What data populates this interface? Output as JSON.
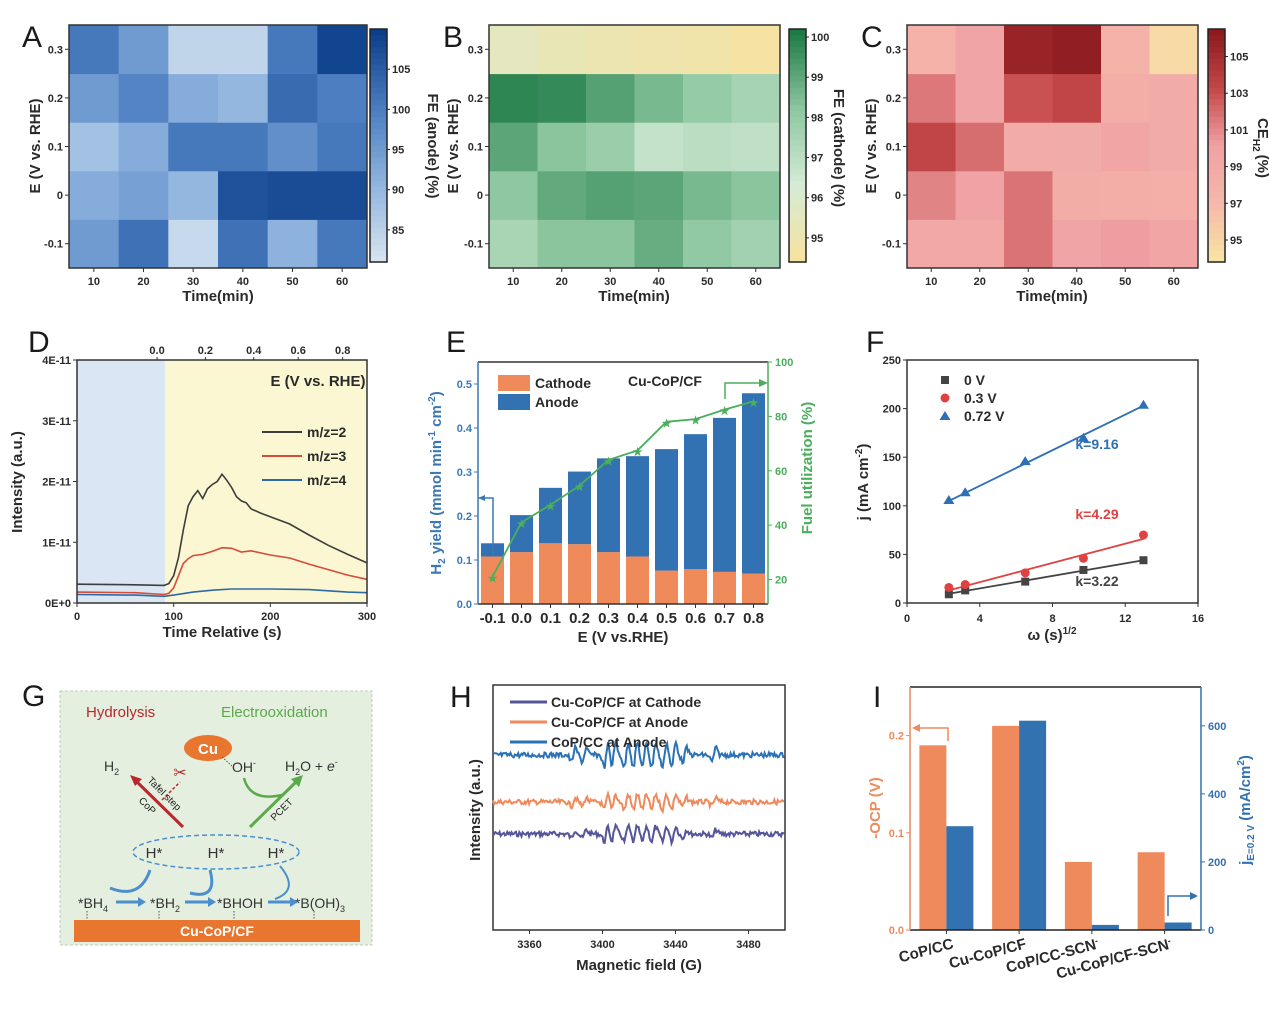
{
  "figure": {
    "panel_labels": [
      "A",
      "B",
      "C",
      "D",
      "E",
      "F",
      "G",
      "H",
      "I"
    ]
  },
  "chart_data": [
    {
      "panel": "A",
      "type": "heatmap",
      "xlabel": "Time(min)",
      "ylabel": "E (V vs. RHE)",
      "x_categories": [
        "10",
        "20",
        "30",
        "40",
        "50",
        "60"
      ],
      "y_categories": [
        "-0.1",
        "0",
        "0.1",
        "0.2",
        "0.3"
      ],
      "values": [
        [
          95,
          102,
          83,
          102,
          91,
          101
        ],
        [
          92,
          94,
          90,
          107,
          108,
          108
        ],
        [
          88,
          92,
          101,
          101,
          97,
          101
        ],
        [
          95,
          99,
          92,
          90,
          103,
          100
        ],
        [
          101,
          95,
          84,
          84,
          101,
          109
        ]
      ],
      "colorbar": {
        "label": "FE (anode) (%)",
        "ticks": [
          "85",
          "90",
          "95",
          "100",
          "105"
        ],
        "range": [
          81,
          110
        ],
        "low_color": "#d5e2ef",
        "high_color": "#0c3f8a"
      }
    },
    {
      "panel": "B",
      "type": "heatmap",
      "xlabel": "Time(min)",
      "ylabel": "E (V vs. RHE)",
      "x_categories": [
        "10",
        "20",
        "30",
        "40",
        "50",
        "60"
      ],
      "y_categories": [
        "-0.1",
        "0",
        "0.1",
        "0.2",
        "0.3"
      ],
      "values": [
        [
          97.5,
          98.3,
          98.3,
          98.9,
          98.1,
          97.7
        ],
        [
          98.2,
          99.0,
          99.2,
          99.1,
          98.6,
          98.3
        ],
        [
          99.1,
          98.3,
          97.9,
          96.8,
          97.0,
          96.9
        ],
        [
          99.9,
          99.8,
          99.2,
          98.6,
          98.0,
          97.6
        ],
        [
          95.5,
          95.2,
          95.0,
          94.9,
          94.8,
          94.5
        ]
      ],
      "colorbar": {
        "label": "FE (cathode) (%)",
        "ticks": [
          "95",
          "96",
          "97",
          "98",
          "99",
          "100"
        ],
        "range": [
          94.4,
          100.2
        ],
        "low_color": "#f7e3a2",
        "high_color": "#1d7a45"
      }
    },
    {
      "panel": "C",
      "type": "heatmap",
      "xlabel": "Time(min)",
      "ylabel": "E (V vs. RHE)",
      "x_categories": [
        "10",
        "20",
        "30",
        "40",
        "50",
        "60"
      ],
      "y_categories": [
        "-0.1",
        "0",
        "0.1",
        "0.2",
        "0.3"
      ],
      "values": [
        [
          99.2,
          99.0,
          101.8,
          99.8,
          100.3,
          99.6
        ],
        [
          101.2,
          100.0,
          101.8,
          98.5,
          98.4,
          98.2
        ],
        [
          103.5,
          102.0,
          98.8,
          98.6,
          99.5,
          98.7
        ],
        [
          101.6,
          99.7,
          103.0,
          103.5,
          98.3,
          98.7
        ],
        [
          97.8,
          99.8,
          105.8,
          106.2,
          97.8,
          94.5
        ]
      ],
      "colorbar": {
        "label_main": "CE",
        "label_sub": "H2",
        "label_tail": "(%)",
        "ticks": [
          "95",
          "97",
          "99",
          "101",
          "103",
          "105"
        ],
        "range": [
          93.8,
          106.5
        ],
        "low_color": "#f8e3a4",
        "high_color": "#8c1a1e"
      }
    },
    {
      "panel": "D",
      "type": "line",
      "xlabel": "Time Relative (s)",
      "ylabel": "Intensity (a.u.)",
      "top_axis_label": "E (V vs. RHE)",
      "x_ticks": [
        "0",
        "100",
        "200",
        "300"
      ],
      "xlim": [
        0,
        300
      ],
      "top_ticks": [
        "0.0",
        "0.2",
        "0.4",
        "0.6",
        "0.8"
      ],
      "top_tick_positions_s": [
        118,
        168,
        218,
        264,
        310
      ],
      "y_ticks": [
        "0E+0",
        "1E-11",
        "2E-11",
        "3E-11",
        "4E-11"
      ],
      "ylim": [
        0,
        4e-11
      ],
      "shaded_regions": [
        {
          "from": 0,
          "to": 91,
          "color": "#dbe6f4"
        },
        {
          "from": 91,
          "to": 300,
          "color": "#fbf7d2"
        }
      ],
      "series": [
        {
          "name": "m/z=2",
          "color": "#3d3d3d",
          "x": [
            0,
            60,
            90,
            95,
            100,
            105,
            110,
            115,
            120,
            125,
            130,
            135,
            140,
            145,
            150,
            155,
            160,
            165,
            170,
            175,
            180,
            190,
            200,
            220,
            240,
            260,
            280,
            300
          ],
          "y": [
            3.1e-12,
            3e-12,
            2.9e-12,
            3.2e-12,
            4.5e-12,
            7.5e-12,
            1.2e-11,
            1.6e-11,
            1.75e-11,
            1.85e-11,
            1.72e-11,
            1.88e-11,
            1.95e-11,
            2e-11,
            2.12e-11,
            2.02e-11,
            1.9e-11,
            1.75e-11,
            1.68e-11,
            1.65e-11,
            1.55e-11,
            1.48e-11,
            1.42e-11,
            1.3e-11,
            1.12e-11,
            9.5e-12,
            8e-12,
            6.6e-12
          ]
        },
        {
          "name": "m/z=3",
          "color": "#d84a3a",
          "x": [
            0,
            60,
            90,
            95,
            100,
            105,
            110,
            115,
            120,
            130,
            140,
            150,
            160,
            170,
            180,
            200,
            220,
            240,
            260,
            280,
            300
          ],
          "y": [
            1.8e-12,
            1.7e-12,
            1.4e-12,
            1.6e-12,
            2.5e-12,
            4.5e-12,
            6.5e-12,
            7.3e-12,
            7.8e-12,
            8e-12,
            8.5e-12,
            9.1e-12,
            9e-12,
            8.4e-12,
            8.6e-12,
            7.9e-12,
            7.4e-12,
            6.4e-12,
            5.5e-12,
            4.6e-12,
            3.9e-12
          ]
        },
        {
          "name": "m/z=4",
          "color": "#2d6aa5",
          "x": [
            0,
            60,
            90,
            100,
            120,
            140,
            160,
            200,
            240,
            280,
            300
          ],
          "y": [
            1.4e-12,
            1.3e-12,
            1.1e-12,
            1.3e-12,
            1.8e-12,
            2.1e-12,
            2.3e-12,
            2.3e-12,
            2.2e-12,
            1.8e-12,
            1.7e-12
          ]
        }
      ]
    },
    {
      "panel": "E",
      "type": "bar",
      "stacked": true,
      "annotation": "Cu-CoP/CF",
      "xlabel": "E (V vs.RHE)",
      "ylabel": "H2 yield (mmol min-1 cm-2)",
      "ylabel_parts": {
        "pre": "H",
        "sub": "2",
        "mid": " yield (mmol min",
        "sup1": "-1",
        "mid2": " cm",
        "sup2": "-2",
        "post": ")"
      },
      "y2label": "Fuel utilization (%)",
      "categories": [
        "-0.1",
        "0.0",
        "0.1",
        "0.2",
        "0.3",
        "0.4",
        "0.5",
        "0.6",
        "0.7",
        "0.8"
      ],
      "y_ticks": [
        "0.0",
        "0.1",
        "0.2",
        "0.3",
        "0.4",
        "0.5"
      ],
      "ylim": [
        0,
        0.55
      ],
      "y2_ticks": [
        "20",
        "40",
        "60",
        "80",
        "100"
      ],
      "y2lim": [
        11,
        100
      ],
      "series": [
        {
          "name": "Cathode",
          "color": "#ef8a5b",
          "values": [
            0.108,
            0.118,
            0.138,
            0.136,
            0.118,
            0.108,
            0.076,
            0.079,
            0.073,
            0.069
          ]
        },
        {
          "name": "Anode",
          "color": "#3272b2",
          "values": [
            0.03,
            0.084,
            0.126,
            0.165,
            0.213,
            0.228,
            0.276,
            0.307,
            0.35,
            0.41
          ]
        }
      ],
      "line_series": {
        "name": "Fuel utilization",
        "color": "#4aae5c",
        "axis": "right",
        "values": [
          21,
          41,
          47.5,
          54.5,
          64,
          67.5,
          78,
          79,
          82.5,
          85.5
        ]
      }
    },
    {
      "panel": "F",
      "type": "scatter",
      "xlabel": "ω (s)1/2",
      "xlabel_parts": {
        "main": "ω (s)",
        "sup": "1/2"
      },
      "ylabel": "j (mA cm-2)",
      "ylabel_parts": {
        "main": "j (mA cm",
        "sup": "-2",
        "post": ")"
      },
      "x_ticks": [
        "0",
        "4",
        "8",
        "12",
        "16"
      ],
      "xlim": [
        0,
        16
      ],
      "y_ticks": [
        "0",
        "50",
        "100",
        "150",
        "200",
        "250"
      ],
      "ylim": [
        0,
        250
      ],
      "series": [
        {
          "name": "0 V",
          "marker": "square",
          "color": "#444444",
          "x": [
            2.3,
            3.2,
            6.5,
            9.7,
            13.0
          ],
          "y": [
            9,
            13,
            22,
            34,
            44
          ],
          "fit_label": "k=3.22",
          "fit": [
            2.3,
            9.5,
            13.0,
            44
          ]
        },
        {
          "name": "0.3 V",
          "marker": "circle",
          "color": "#e04141",
          "x": [
            2.3,
            3.2,
            6.5,
            9.7,
            13.0
          ],
          "y": [
            16,
            19,
            31,
            46,
            70
          ],
          "fit_label": "k=4.29",
          "fit": [
            2.3,
            13,
            13.0,
            66
          ]
        },
        {
          "name": "0.72 V",
          "marker": "triangle",
          "color": "#2f6fb5",
          "x": [
            2.3,
            3.2,
            6.5,
            9.7,
            13.0
          ],
          "y": [
            106,
            114,
            146,
            170,
            204
          ],
          "fit_label": "k=9.16",
          "fit": [
            2.3,
            105,
            13.0,
            203
          ]
        }
      ]
    },
    {
      "panel": "H",
      "type": "line",
      "xlabel": "Magnetic field (G)",
      "ylabel": "Intensity (a.u.)",
      "x_ticks": [
        "3360",
        "3400",
        "3440",
        "3480"
      ],
      "xlim": [
        3340,
        3500
      ],
      "series": [
        {
          "name": "Cu-CoP/CF at Cathode",
          "color": "#55559a",
          "offset": 2,
          "amplitude": 0.8
        },
        {
          "name": "Cu-CoP/CF at Anode",
          "color": "#ee8a5c",
          "offset": 1,
          "amplitude": 0.8
        },
        {
          "name": "CoP/CC at Anode",
          "color": "#2a72b5",
          "offset": 0,
          "amplitude": 1.3
        }
      ],
      "peak_positions_G": [
        3384,
        3390,
        3402,
        3406,
        3413,
        3418,
        3423,
        3428,
        3434,
        3439,
        3445,
        3461
      ]
    },
    {
      "panel": "I",
      "type": "bar",
      "grouped": true,
      "categories": [
        "CoP/CC",
        "Cu-CoP/CF",
        "CoP/CC-SCN-",
        "Cu-CoP/CF-SCN-"
      ],
      "category_parts": [
        {
          "main": "CoP/CC",
          "sup": ""
        },
        {
          "main": "Cu-CoP/CF",
          "sup": ""
        },
        {
          "main": "CoP/CC-SCN",
          "sup": "-"
        },
        {
          "main": "Cu-CoP/CF-SCN",
          "sup": "-"
        }
      ],
      "ylabel": "-OCP (V)",
      "y_ticks": [
        "0.0",
        "0.1",
        "0.2"
      ],
      "ylim": [
        0,
        0.25
      ],
      "y2label": "jE=0.2 V (mA/cm2)",
      "y2label_parts": {
        "main": "j",
        "sub": "E=0.2 V",
        "mid": " (mA/cm",
        "sup": "2",
        "post": ")"
      },
      "y2_ticks": [
        "0",
        "200",
        "400",
        "600"
      ],
      "y2lim": [
        0,
        714
      ],
      "series": [
        {
          "name": "-OCP",
          "axis": "left",
          "color": "#ee8a5c",
          "values": [
            0.19,
            0.21,
            0.07,
            0.08
          ]
        },
        {
          "name": "j",
          "axis": "right",
          "color": "#3272b0",
          "values": [
            305,
            615,
            15,
            22
          ]
        }
      ]
    }
  ],
  "diagram_G": {
    "title_left": "Hydrolysis",
    "title_right": "Electrooxidation",
    "cu_label": "Cu",
    "oh_label": "OH",
    "oh_sup": "-",
    "h2_label": "H",
    "h2_sub": "2",
    "product_label": "H",
    "product_sub": "2",
    "product_tail": "O + ",
    "electron": "e",
    "electron_sup": "-",
    "tafel_label": "Tafel step",
    "cop_label": "CoP",
    "pcet_label": "PCET",
    "h_star": [
      "H*",
      "H*",
      "H*"
    ],
    "species": [
      {
        "main": "*BH",
        "sub": "4"
      },
      {
        "main": "*BH",
        "sub": "2"
      },
      {
        "main": "*BHOH",
        "sub": ""
      },
      {
        "main": "*B(OH)",
        "sub": "3"
      }
    ],
    "substrate": "Cu-CoP/CF",
    "colors": {
      "background": "#e4efdf",
      "hydrolysis": "#b8282c",
      "electrooxidation": "#5aaa4a",
      "substrate": "#e8762f",
      "arrows": "#4b8fcf"
    }
  }
}
